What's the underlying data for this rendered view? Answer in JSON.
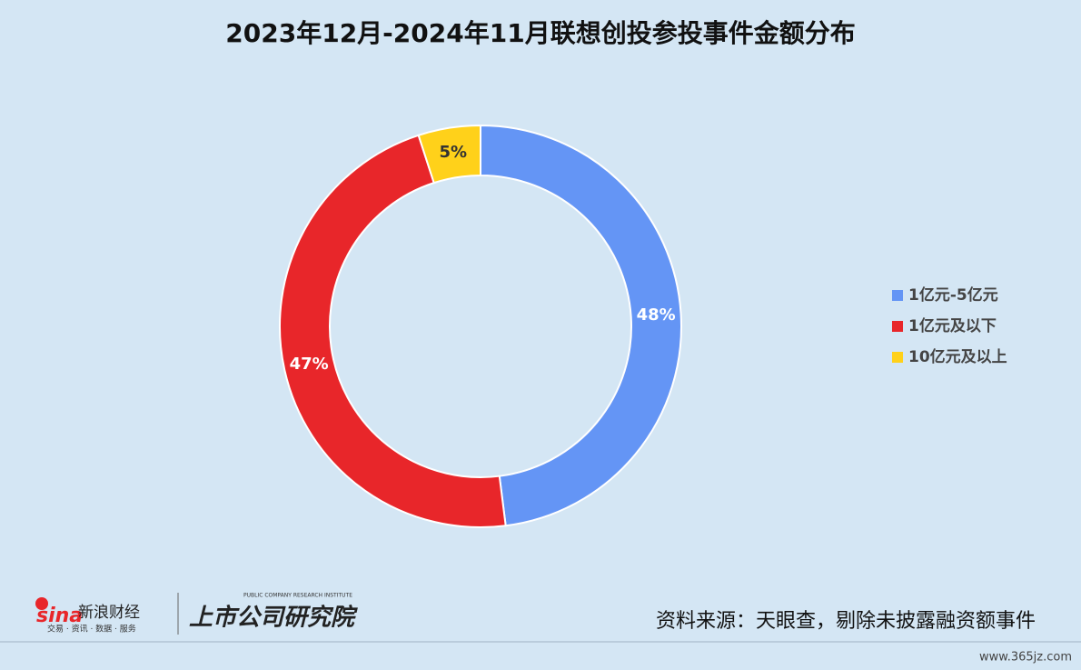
{
  "chart_data": {
    "type": "pie",
    "title": "2023年12月-2024年11月联想创投参投事件金额分布",
    "categories": [
      "1亿元-5亿元",
      "1亿元及以下",
      "10亿元及以上"
    ],
    "values": [
      48,
      47,
      5
    ],
    "value_labels": [
      "48%",
      "47%",
      "5%"
    ],
    "colors": [
      "#6495f5",
      "#e8262a",
      "#ffd11a"
    ],
    "legend": "right"
  },
  "footer": {
    "logo_text": "新浪财经",
    "logo_sub": "交易 · 资讯 · 数据 · 服务",
    "institute": "上市公司研究院",
    "institute_en": "PUBLIC COMPANY RESEARCH INSTITUTE",
    "source": "资料来源：天眼查，剔除未披露融资额事件",
    "watermark": "www.365jz.com"
  }
}
